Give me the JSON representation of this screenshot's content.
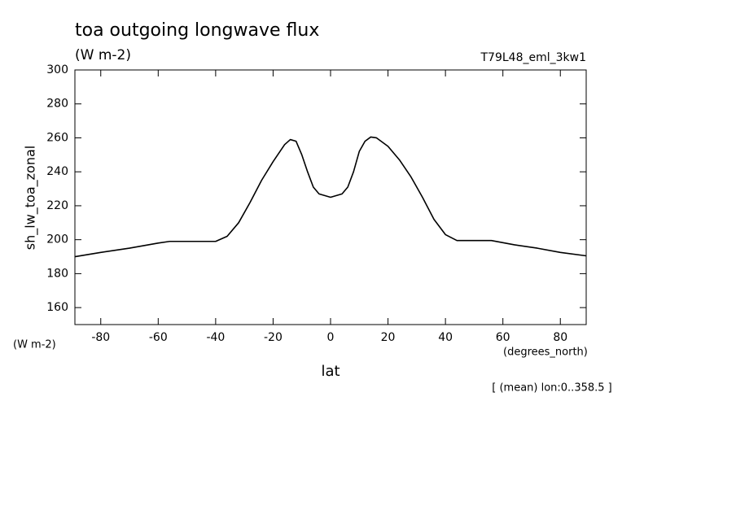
{
  "chart_data": {
    "type": "line",
    "title": "toa outgoing longwave flux",
    "subtitle": "(W m-2)",
    "run_label": "T79L48_eml_3kw1",
    "y_label": "sh_lw_toa_zonal",
    "y_units": "(W m-2)",
    "x_label": "lat",
    "x_units": "(degrees_north)",
    "annotation": "[ (mean) lon:0..358.5 ]",
    "x": [
      -89,
      -80,
      -70,
      -60,
      -56,
      -40,
      -36,
      -32,
      -28,
      -24,
      -20,
      -16,
      -14,
      -12,
      -10,
      -8,
      -6,
      -4,
      0,
      4,
      6,
      8,
      10,
      12,
      14,
      16,
      20,
      24,
      28,
      32,
      36,
      40,
      44,
      56,
      64,
      72,
      80,
      89
    ],
    "series": [
      {
        "name": "sh_lw_toa_zonal",
        "color": "#000000",
        "values": [
          190,
          192.5,
          195,
          198,
          199,
          199,
          202,
          210,
          222,
          235,
          246,
          256,
          259,
          258,
          250,
          240,
          231,
          227,
          225,
          227,
          231,
          240,
          252,
          258,
          260.5,
          260,
          255,
          247,
          237,
          225,
          212,
          203,
          199.5,
          199.5,
          197,
          195,
          192.5,
          190.5
        ]
      }
    ],
    "xlim": [
      -89,
      89
    ],
    "ylim": [
      150,
      300
    ],
    "xticks": [
      -80,
      -60,
      -40,
      -20,
      0,
      20,
      40,
      60,
      80
    ],
    "yticks": [
      160,
      180,
      200,
      220,
      240,
      260,
      280,
      300
    ],
    "grid": false
  }
}
